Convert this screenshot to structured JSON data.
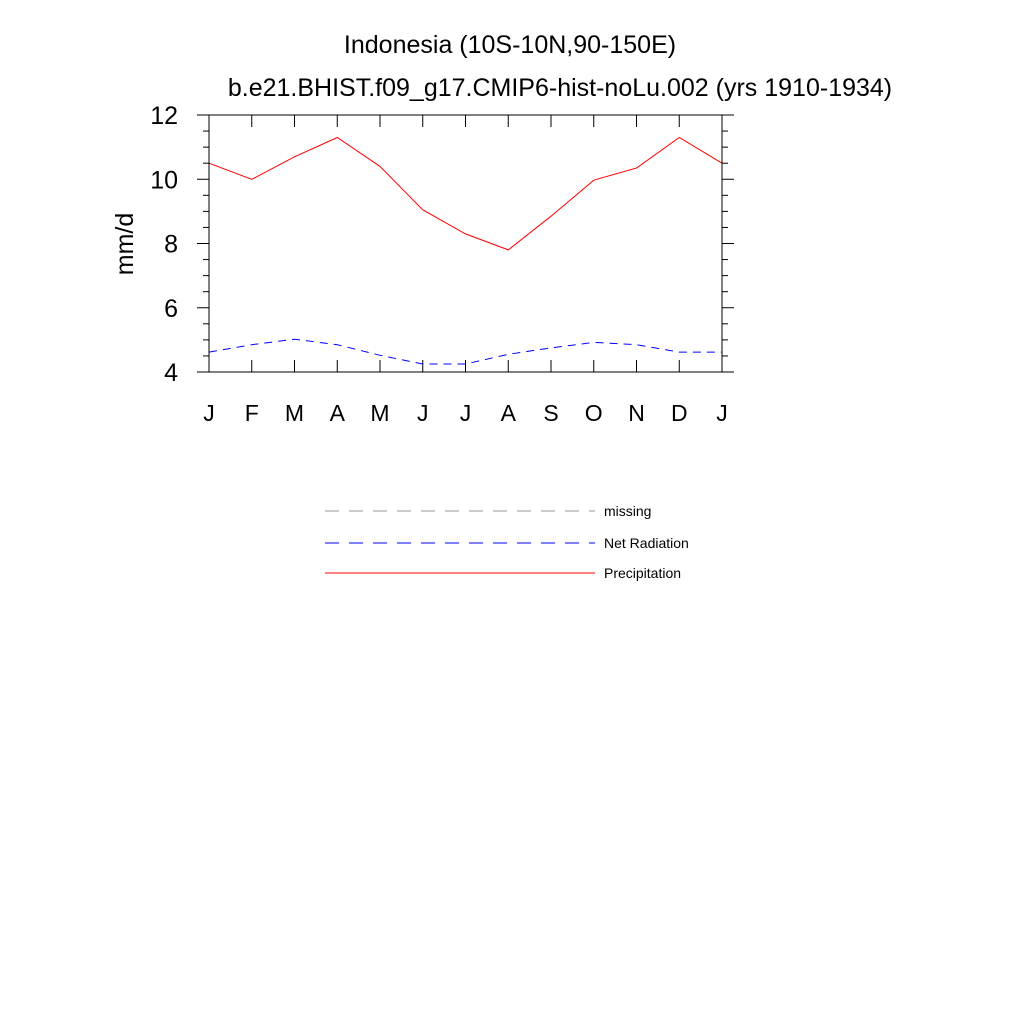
{
  "chart_data": {
    "type": "line",
    "title": "Indonesia (10S-10N,90-150E)",
    "subtitle": "b.e21.BHIST.f09_g17.CMIP6-hist-noLu.002 (yrs 1910-1934)",
    "xlabel": "",
    "ylabel": "mm/d",
    "ylim": [
      4,
      12
    ],
    "yticks": [
      "4",
      "6",
      "8",
      "10",
      "12"
    ],
    "categories": [
      "J",
      "F",
      "M",
      "A",
      "M",
      "J",
      "J",
      "A",
      "S",
      "O",
      "N",
      "D",
      "J"
    ],
    "grid": false,
    "legend_position": "bottom",
    "series": [
      {
        "name": "Precipitation",
        "color": "#ff0000",
        "dash": "solid",
        "values": [
          10.5,
          10.0,
          10.7,
          11.3,
          10.4,
          9.05,
          8.3,
          7.8,
          8.85,
          9.97,
          10.35,
          11.3,
          10.5
        ]
      },
      {
        "name": "Net Radiation",
        "color": "#0000ff",
        "dash": "dashed",
        "values": [
          4.62,
          4.85,
          5.02,
          4.85,
          4.52,
          4.25,
          4.25,
          4.55,
          4.75,
          4.92,
          4.85,
          4.62,
          4.62
        ]
      }
    ],
    "legend": [
      {
        "label": "missing",
        "color": "#999999",
        "dash": "dashed"
      },
      {
        "label": "Net Radiation",
        "color": "#0000ff",
        "dash": "dashed"
      },
      {
        "label": "Precipitation",
        "color": "#ff0000",
        "dash": "solid"
      }
    ]
  }
}
